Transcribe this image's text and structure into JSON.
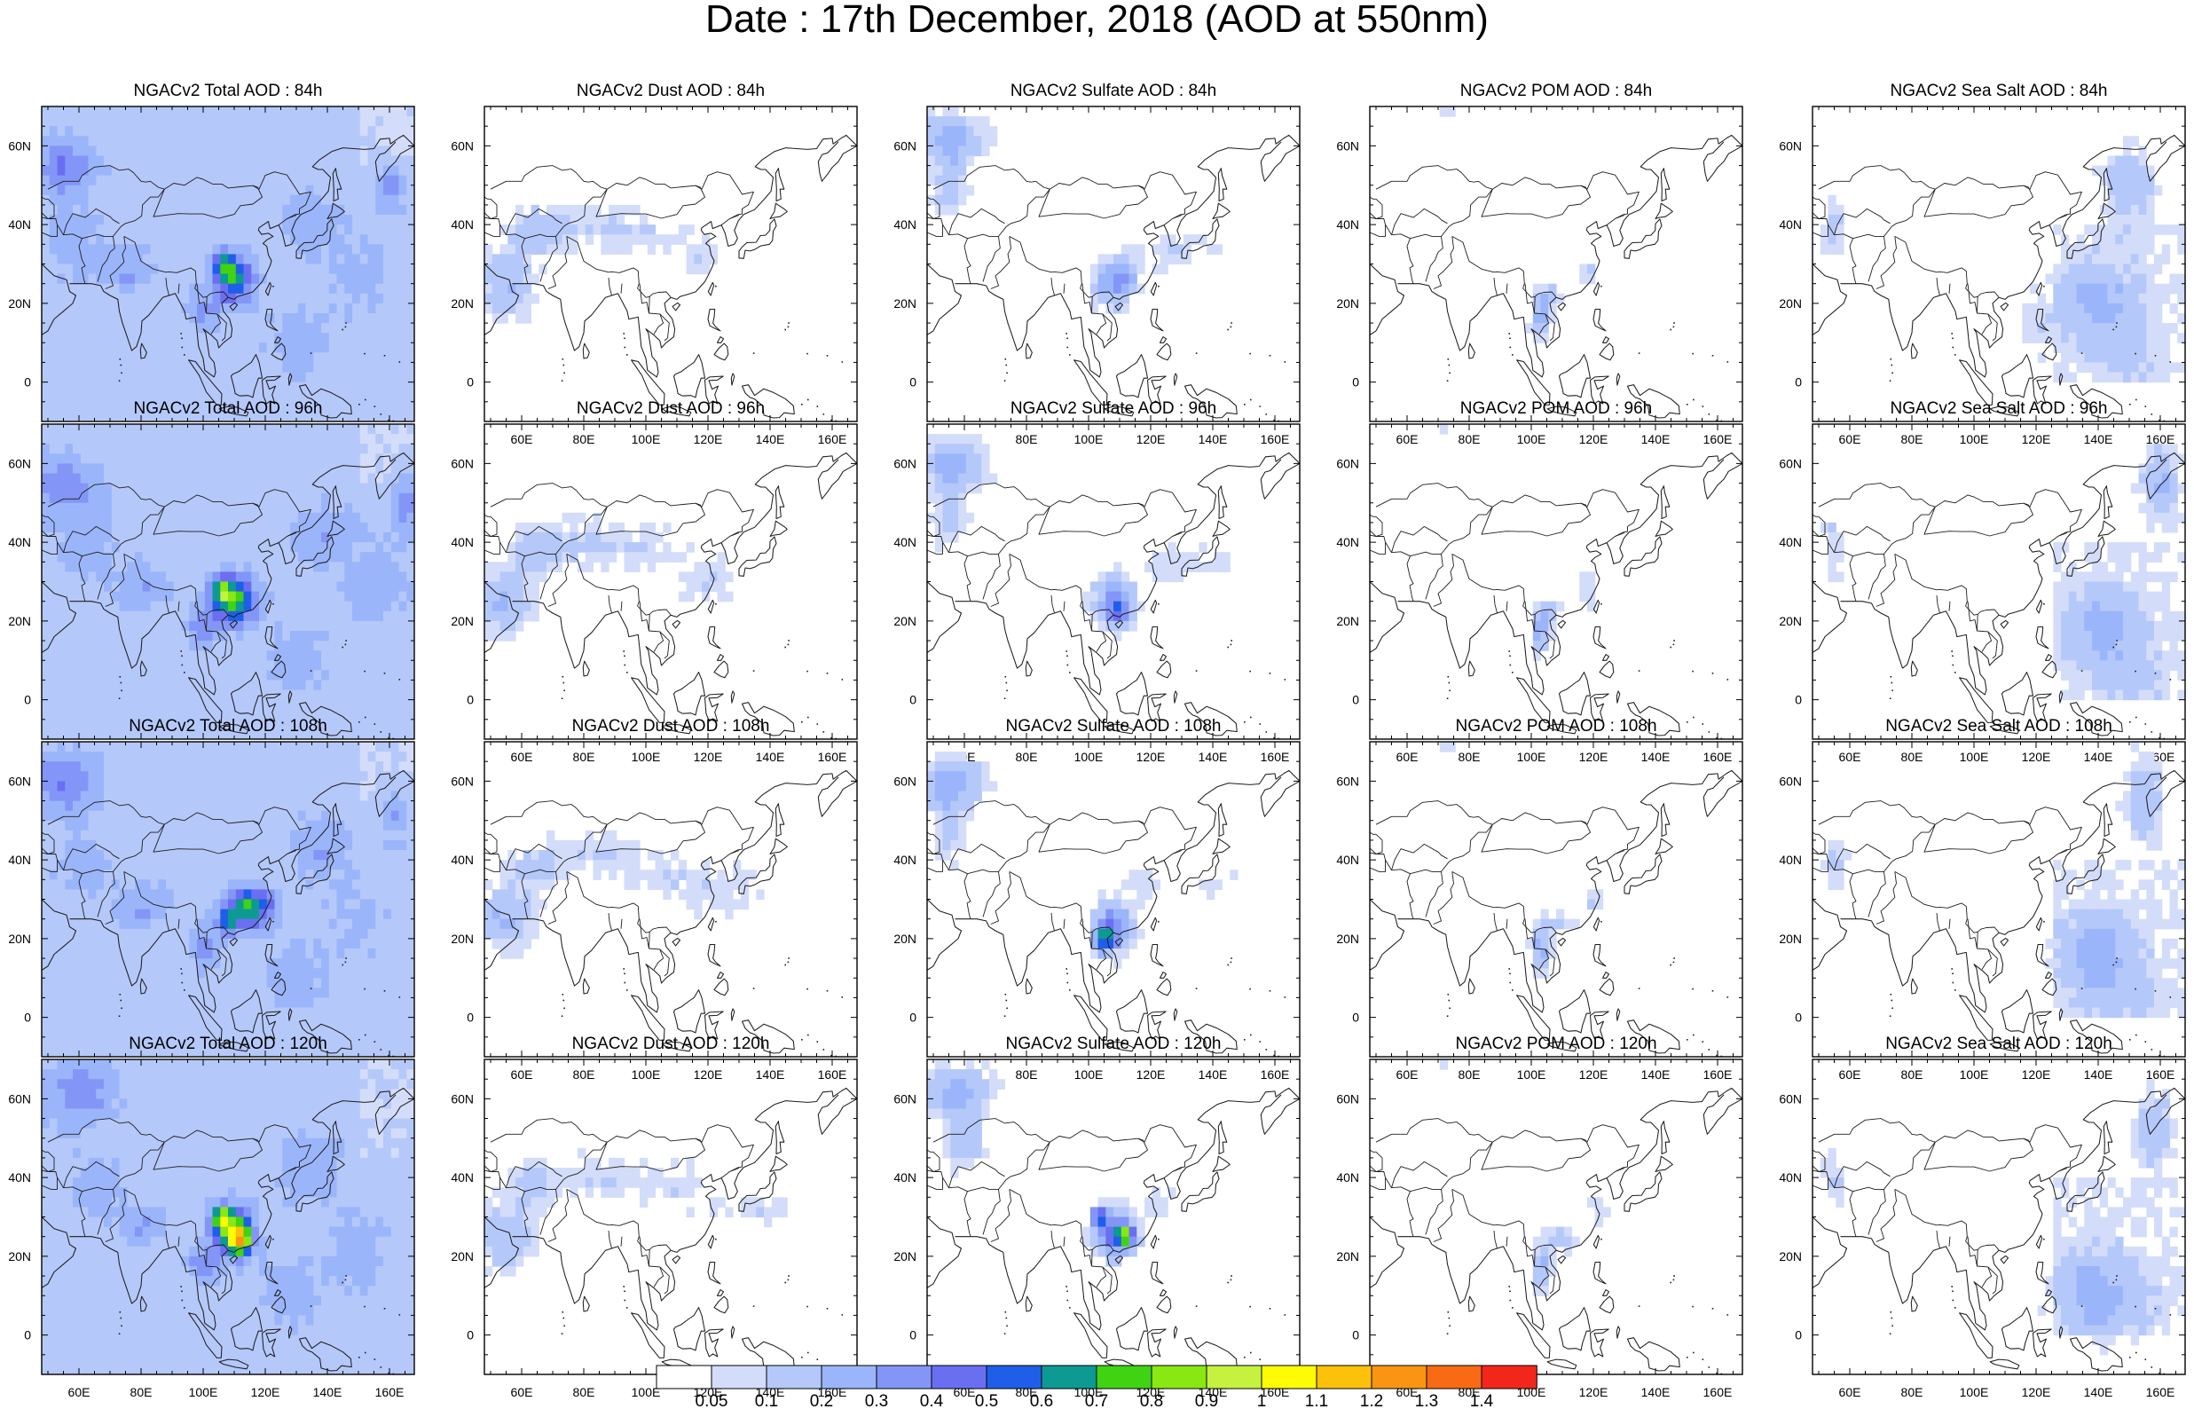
{
  "title": "Date : 17th December, 2018 (AOD at 550nm)",
  "panels": [
    {
      "title": "NGACv2 Total AOD : 84h",
      "species": "total",
      "row": 0,
      "col": 0
    },
    {
      "title": "NGACv2 Dust AOD : 84h",
      "species": "dust",
      "row": 0,
      "col": 1
    },
    {
      "title": "NGACv2 Sulfate AOD : 84h",
      "species": "sulfate",
      "row": 0,
      "col": 2
    },
    {
      "title": "NGACv2 POM AOD : 84h",
      "species": "pom",
      "row": 0,
      "col": 3
    },
    {
      "title": "NGACv2 Sea Salt AOD : 84h",
      "species": "seasalt",
      "row": 0,
      "col": 4
    },
    {
      "title": "NGACv2 Total AOD : 96h",
      "species": "total",
      "row": 1,
      "col": 0
    },
    {
      "title": "NGACv2 Dust AOD : 96h",
      "species": "dust",
      "row": 1,
      "col": 1
    },
    {
      "title": "NGACv2 Sulfate AOD : 96h",
      "species": "sulfate",
      "row": 1,
      "col": 2
    },
    {
      "title": "NGACv2 POM AOD : 96h",
      "species": "pom",
      "row": 1,
      "col": 3
    },
    {
      "title": "NGACv2 Sea Salt AOD : 96h",
      "species": "seasalt",
      "row": 1,
      "col": 4
    },
    {
      "title": "NGACv2 Total AOD : 108h",
      "species": "total",
      "row": 2,
      "col": 0
    },
    {
      "title": "NGACv2 Dust AOD : 108h",
      "species": "dust",
      "row": 2,
      "col": 1
    },
    {
      "title": "NGACv2 Sulfate AOD : 108h",
      "species": "sulfate",
      "row": 2,
      "col": 2
    },
    {
      "title": "NGACv2 POM AOD : 108h",
      "species": "pom",
      "row": 2,
      "col": 3
    },
    {
      "title": "NGACv2 Sea Salt AOD : 108h",
      "species": "seasalt",
      "row": 2,
      "col": 4
    },
    {
      "title": "NGACv2 Total AOD : 120h",
      "species": "total",
      "row": 3,
      "col": 0
    },
    {
      "title": "NGACv2 Dust AOD : 120h",
      "species": "dust",
      "row": 3,
      "col": 1
    },
    {
      "title": "NGACv2 Sulfate AOD : 120h",
      "species": "sulfate",
      "row": 3,
      "col": 2
    },
    {
      "title": "NGACv2 POM AOD : 120h",
      "species": "pom",
      "row": 3,
      "col": 3
    },
    {
      "title": "NGACv2 Sea Salt  AOD : 120h",
      "species": "seasalt",
      "row": 3,
      "col": 4
    }
  ],
  "map_extent": {
    "lon": [
      48,
      168
    ],
    "lat": [
      -10,
      70
    ]
  },
  "x_ticks": [
    {
      "value": 60,
      "label": "60E"
    },
    {
      "value": 80,
      "label": "80E"
    },
    {
      "value": 100,
      "label": "100E"
    },
    {
      "value": 120,
      "label": "120E"
    },
    {
      "value": 140,
      "label": "140E"
    },
    {
      "value": 160,
      "label": "160E"
    }
  ],
  "y_ticks": [
    {
      "value": 60,
      "label": "60N"
    },
    {
      "value": 40,
      "label": "40N"
    },
    {
      "value": 20,
      "label": "20N"
    },
    {
      "value": 0,
      "label": "0"
    }
  ],
  "colorbar": {
    "labels": [
      "0.05",
      "0.1",
      "0.2",
      "0.3",
      "0.4",
      "0.5",
      "0.6",
      "0.7",
      "0.8",
      "0.9",
      "1",
      "1.1",
      "1.2",
      "1.3",
      "1.4"
    ],
    "colors": [
      "#ffffff",
      "#d3ddfa",
      "#b5c8fa",
      "#9bb5fa",
      "#8396f7",
      "#6a6ff2",
      "#1f5ee8",
      "#0c9a93",
      "#3fd314",
      "#8ae812",
      "#c4f23e",
      "#fdfb05",
      "#fcc10a",
      "#f99512",
      "#f96a14",
      "#f3261c"
    ]
  }
}
